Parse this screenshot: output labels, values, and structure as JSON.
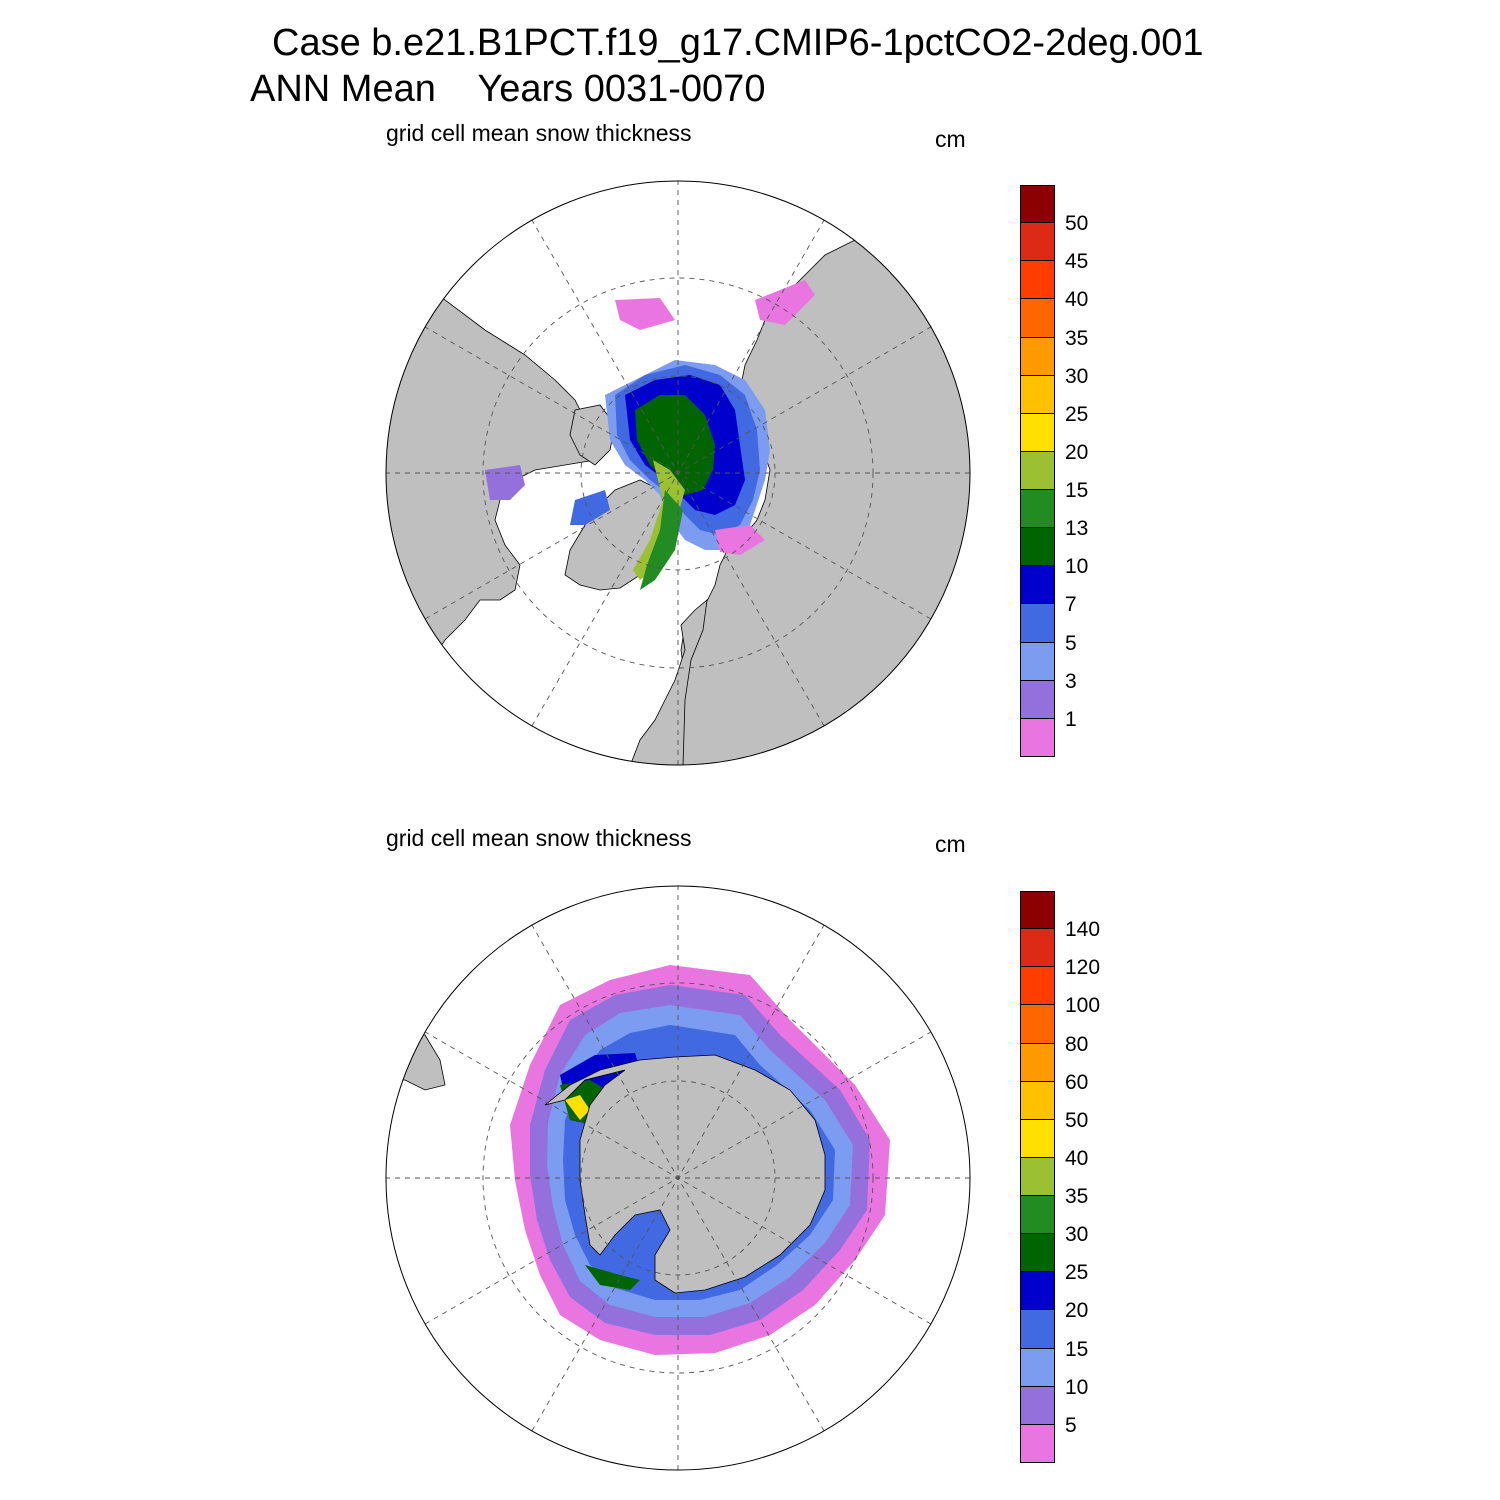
{
  "header": {
    "case_line": "Case b.e21.B1PCT.f19_g17.CMIP6-1pctCO2-2deg.001",
    "period_line": "ANN Mean    Years 0031-0070"
  },
  "colors": {
    "land": "#bfbfbf",
    "ocean": "#ffffff"
  },
  "panels": [
    {
      "hemisphere": "north",
      "variable": "grid cell mean snow thickness",
      "units": "cm",
      "colorbar": {
        "colors": [
          "#8b0000",
          "#dc2a16",
          "#ff3d00",
          "#ff6600",
          "#ff9900",
          "#ffc000",
          "#ffe000",
          "#9bc031",
          "#228b22",
          "#006400",
          "#0000cd",
          "#4169e1",
          "#7b9cf0",
          "#9370db",
          "#e875e0"
        ],
        "labels": [
          "50",
          "45",
          "40",
          "35",
          "30",
          "25",
          "20",
          "15",
          "13",
          "10",
          "7",
          "5",
          "3",
          "1"
        ]
      }
    },
    {
      "hemisphere": "south",
      "variable": "grid cell mean snow thickness",
      "units": "cm",
      "colorbar": {
        "colors": [
          "#8b0000",
          "#dc2a16",
          "#ff3d00",
          "#ff6600",
          "#ff9900",
          "#ffc000",
          "#ffe000",
          "#9bc031",
          "#228b22",
          "#006400",
          "#0000cd",
          "#4169e1",
          "#7b9cf0",
          "#9370db",
          "#e875e0"
        ],
        "labels": [
          "140",
          "120",
          "100",
          "80",
          "60",
          "50",
          "40",
          "35",
          "30",
          "25",
          "20",
          "15",
          "10",
          "5"
        ]
      }
    }
  ]
}
